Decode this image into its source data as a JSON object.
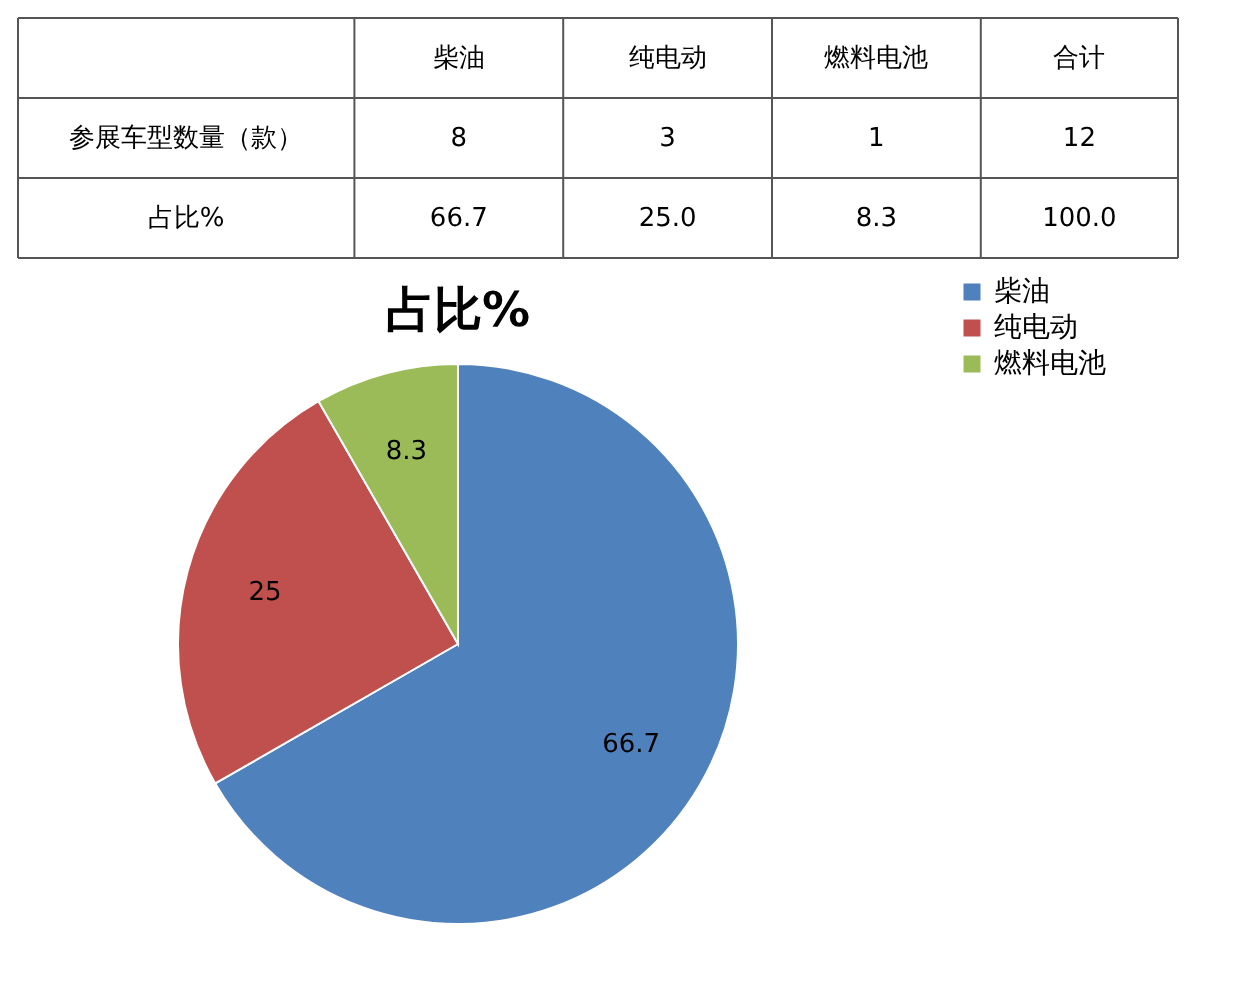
{
  "chart_data": {
    "type": "pie",
    "title": "占比%",
    "categories": [
      "柴油",
      "纯电动",
      "燃料电池"
    ],
    "values": [
      66.7,
      25,
      8.3
    ],
    "colors": [
      "#4f81bd",
      "#c0504d",
      "#9bbb59"
    ],
    "data_labels": true,
    "legend": "right",
    "annotations": [
      "柴油",
      "纯电动",
      "燃料电池",
      "合计",
      "参展车型数量（款）",
      "8",
      "3",
      "1",
      "12",
      "占比%",
      "66.7",
      "25.0",
      "8.3",
      "100.0"
    ]
  }
}
